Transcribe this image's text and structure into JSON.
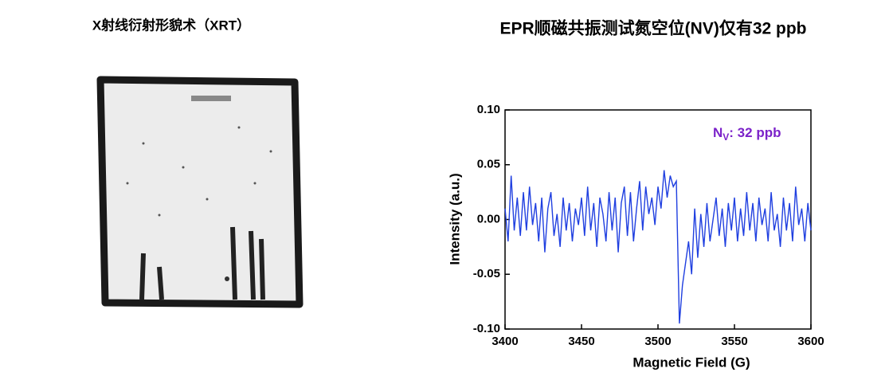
{
  "left_panel": {
    "title": "X射线衍射形貌术（XRT）"
  },
  "chart_data": {
    "type": "line",
    "title": "EPR顺磁共振测试氮空位(NV)仅有32 ppb",
    "x_label": "Magnetic Field (G)",
    "y_label": "Intensity (a.u.)",
    "annotation": {
      "main": "N",
      "sub": "V",
      "rest": ": 32 ppb"
    },
    "annotation_color": "#7b22c9",
    "xlim": [
      3400,
      3600
    ],
    "ylim": [
      -0.1,
      0.1
    ],
    "xticks": [
      3400,
      3450,
      3500,
      3550,
      3600
    ],
    "yticks": [
      {
        "value": 0.1,
        "label": "0.10"
      },
      {
        "value": 0.05,
        "label": "0.05"
      },
      {
        "value": 0,
        "label": "0.00"
      },
      {
        "value": -0.05,
        "label": "-0.05"
      },
      {
        "value": -0.1,
        "label": "-0.10"
      }
    ],
    "x": [
      3400,
      3402,
      3404,
      3406,
      3408,
      3410,
      3412,
      3414,
      3416,
      3418,
      3420,
      3422,
      3424,
      3426,
      3428,
      3430,
      3432,
      3434,
      3436,
      3438,
      3440,
      3442,
      3444,
      3446,
      3448,
      3450,
      3452,
      3454,
      3456,
      3458,
      3460,
      3462,
      3464,
      3466,
      3468,
      3470,
      3472,
      3474,
      3476,
      3478,
      3480,
      3482,
      3484,
      3486,
      3488,
      3490,
      3492,
      3494,
      3496,
      3498,
      3500,
      3502,
      3504,
      3506,
      3508,
      3510,
      3512,
      3514,
      3516,
      3518,
      3520,
      3522,
      3524,
      3526,
      3528,
      3530,
      3532,
      3534,
      3536,
      3538,
      3540,
      3542,
      3544,
      3546,
      3548,
      3550,
      3552,
      3554,
      3556,
      3558,
      3560,
      3562,
      3564,
      3566,
      3568,
      3570,
      3572,
      3574,
      3576,
      3578,
      3580,
      3582,
      3584,
      3586,
      3588,
      3590,
      3592,
      3594,
      3596,
      3598,
      3600
    ],
    "series": [
      {
        "color": "#1f3fe0",
        "values": [
          0.01,
          -0.02,
          0.04,
          -0.01,
          0.02,
          -0.015,
          0.025,
          -0.01,
          0.03,
          -0.005,
          0.015,
          -0.02,
          0.02,
          -0.03,
          0.01,
          0.025,
          -0.015,
          0.005,
          -0.025,
          0.02,
          -0.01,
          0.015,
          -0.02,
          0.01,
          -0.005,
          0.02,
          -0.015,
          0.03,
          -0.01,
          0.015,
          -0.025,
          0.02,
          0.005,
          -0.02,
          0.025,
          -0.01,
          0.02,
          -0.03,
          0.015,
          0.03,
          -0.015,
          0.025,
          -0.02,
          0.01,
          0.035,
          -0.01,
          0.03,
          0.005,
          0.02,
          -0.005,
          0.03,
          0.01,
          0.045,
          0.02,
          0.04,
          0.03,
          0.035,
          -0.095,
          -0.06,
          -0.04,
          -0.02,
          -0.05,
          0.01,
          -0.035,
          0.005,
          -0.025,
          0.015,
          -0.02,
          0,
          0.02,
          -0.015,
          0.01,
          -0.025,
          0.015,
          -0.01,
          0.02,
          -0.02,
          0.01,
          -0.015,
          0.025,
          -0.01,
          0.015,
          -0.02,
          0.02,
          -0.005,
          0.01,
          -0.02,
          0.025,
          -0.01,
          0.005,
          -0.025,
          0.02,
          -0.01,
          0.015,
          -0.02,
          0.03,
          -0.005,
          0.01,
          -0.02,
          0.015,
          -0.01
        ]
      }
    ]
  }
}
